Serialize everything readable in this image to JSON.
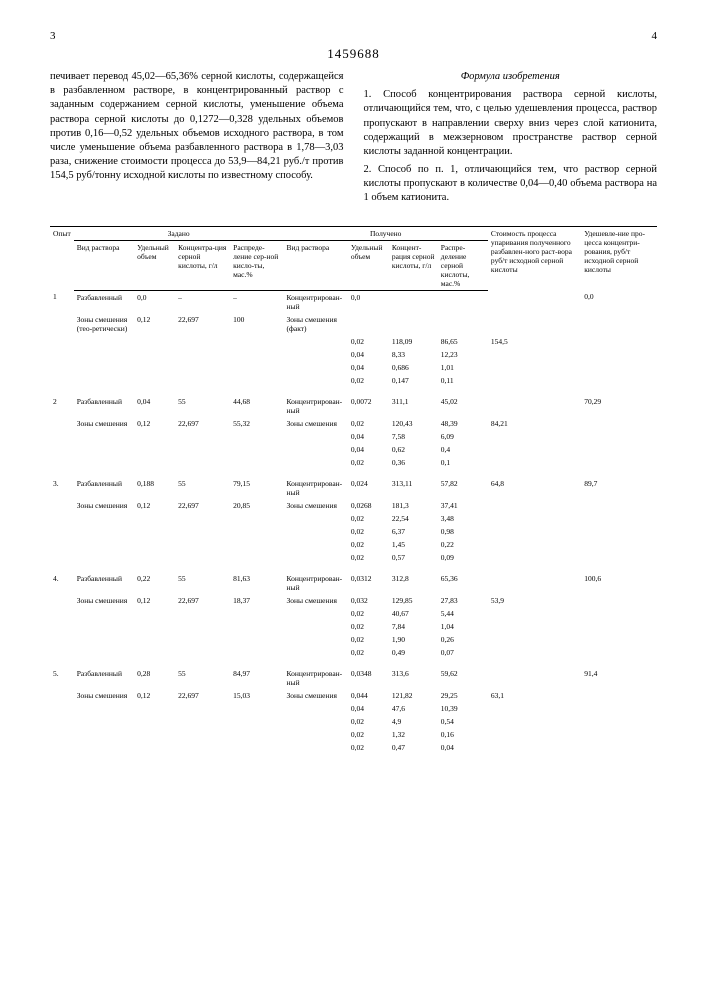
{
  "doc_number": "1459688",
  "page_left": "3",
  "page_right": "4",
  "left_text": "печивает перевод 45,02—65,36% серной кислоты, содержащейся в разбавленном растворе, в концентрированный раствор с заданным содержанием серной кислоты, уменьшение объема раствора серной кислоты до 0,1272—0,328 удельных объемов против 0,16—0,52 удельных объемов исходного раствора, в том числе уменьшение объема разбавленного раствора в 1,78—3,03 раза, снижение стоимости процесса до 53,9—84,21 руб./т против 154,5 руб/тонну исходной кислоты по известному способу.",
  "right_title": "Формула изобретения",
  "right_p1": "1. Способ концентрирования раствора серной кислоты, отличающийся тем, что, с целью удешевления процесса, раствор пропускают в направлении сверху вниз через слой катионита, содержащий в межзерновом пространстве раствор серной кислоты заданной концентрации.",
  "right_p2": "2. Способ по п. 1, отличающийся тем, что раствор серной кислоты пропускают в количестве 0,04—0,40 объема раствора на 1 объем катионита.",
  "headers": {
    "opyt": "Опыт",
    "zadano": "Задано",
    "polucheno": "Получено",
    "vid": "Вид раствора",
    "ud_obj": "Удельный объем",
    "konc": "Концентра-ция серной кислоты, г/л",
    "raspr": "Распреде-ление сер-ной кисло-ты, мас.%",
    "konc2": "Концент-рация серной кислоты, г/л",
    "raspr2": "Распре-деление серной кислоты, мас.%",
    "stoim": "Стоимость процесса упаривания полученного разбавлен-ного раст-вора руб/т исходной серной кислоты",
    "udesh": "Удешевле-ние про-цесса концентри-рования, руб/т исходной серной кислоты"
  },
  "rows": [
    {
      "opyt": "1",
      "z_vid": "Разбавленный",
      "z_ud": "0,0",
      "z_k": "–",
      "z_r": "–",
      "p_vid": "Концентрирован-ный",
      "p_ud": "0,0",
      "p_k": "",
      "p_r": "",
      "st": "",
      "ud": "0,0"
    },
    {
      "opyt": "",
      "z_vid": "Зоны смешения (тео-ретически)",
      "z_ud": "0,12",
      "z_k": "22,697",
      "z_r": "100",
      "p_vid": "Зоны смешения (факт)",
      "p_ud": "",
      "p_k": "",
      "p_r": "",
      "st": "",
      "ud": ""
    },
    {
      "opyt": "",
      "z_vid": "",
      "z_ud": "",
      "z_k": "",
      "z_r": "",
      "p_vid": "",
      "p_ud": "0,02",
      "p_k": "118,09",
      "p_r": "86,65",
      "st": "154,5",
      "ud": ""
    },
    {
      "opyt": "",
      "z_vid": "",
      "z_ud": "",
      "z_k": "",
      "z_r": "",
      "p_vid": "",
      "p_ud": "0,04",
      "p_k": "8,33",
      "p_r": "12,23",
      "st": "",
      "ud": ""
    },
    {
      "opyt": "",
      "z_vid": "",
      "z_ud": "",
      "z_k": "",
      "z_r": "",
      "p_vid": "",
      "p_ud": "0,04",
      "p_k": "0,686",
      "p_r": "1,01",
      "st": "",
      "ud": ""
    },
    {
      "opyt": "",
      "z_vid": "",
      "z_ud": "",
      "z_k": "",
      "z_r": "",
      "p_vid": "",
      "p_ud": "0,02",
      "p_k": "0,147",
      "p_r": "0,11",
      "st": "",
      "ud": ""
    },
    {
      "opyt": "2",
      "z_vid": "Разбавленный",
      "z_ud": "0,04",
      "z_k": "55",
      "z_r": "44,68",
      "p_vid": "Концентрирован-ный",
      "p_ud": "0,0072",
      "p_k": "311,1",
      "p_r": "45,02",
      "st": "",
      "ud": "70,29"
    },
    {
      "opyt": "",
      "z_vid": "Зоны смешения",
      "z_ud": "0,12",
      "z_k": "22,697",
      "z_r": "55,32",
      "p_vid": "Зоны смешения",
      "p_ud": "0,02",
      "p_k": "120,43",
      "p_r": "48,39",
      "st": "84,21",
      "ud": ""
    },
    {
      "opyt": "",
      "z_vid": "",
      "z_ud": "",
      "z_k": "",
      "z_r": "",
      "p_vid": "",
      "p_ud": "0,04",
      "p_k": "7,58",
      "p_r": "6,09",
      "st": "",
      "ud": ""
    },
    {
      "opyt": "",
      "z_vid": "",
      "z_ud": "",
      "z_k": "",
      "z_r": "",
      "p_vid": "",
      "p_ud": "0,04",
      "p_k": "0,62",
      "p_r": "0,4",
      "st": "",
      "ud": ""
    },
    {
      "opyt": "",
      "z_vid": "",
      "z_ud": "",
      "z_k": "",
      "z_r": "",
      "p_vid": "",
      "p_ud": "0,02",
      "p_k": "0,36",
      "p_r": "0,1",
      "st": "",
      "ud": ""
    },
    {
      "opyt": "3.",
      "z_vid": "Разбавленный",
      "z_ud": "0,188",
      "z_k": "55",
      "z_r": "79,15",
      "p_vid": "Концентрирован-ный",
      "p_ud": "0,024",
      "p_k": "313,11",
      "p_r": "57,82",
      "st": "64,8",
      "ud": "89,7"
    },
    {
      "opyt": "",
      "z_vid": "Зоны смешения",
      "z_ud": "0,12",
      "z_k": "22,697",
      "z_r": "20,85",
      "p_vid": "Зоны смешения",
      "p_ud": "0,0268",
      "p_k": "181,3",
      "p_r": "37,41",
      "st": "",
      "ud": ""
    },
    {
      "opyt": "",
      "z_vid": "",
      "z_ud": "",
      "z_k": "",
      "z_r": "",
      "p_vid": "",
      "p_ud": "0,02",
      "p_k": "22,54",
      "p_r": "3,48",
      "st": "",
      "ud": ""
    },
    {
      "opyt": "",
      "z_vid": "",
      "z_ud": "",
      "z_k": "",
      "z_r": "",
      "p_vid": "",
      "p_ud": "0,02",
      "p_k": "6,37",
      "p_r": "0,98",
      "st": "",
      "ud": ""
    },
    {
      "opyt": "",
      "z_vid": "",
      "z_ud": "",
      "z_k": "",
      "z_r": "",
      "p_vid": "",
      "p_ud": "0,02",
      "p_k": "1,45",
      "p_r": "0,22",
      "st": "",
      "ud": ""
    },
    {
      "opyt": "",
      "z_vid": "",
      "z_ud": "",
      "z_k": "",
      "z_r": "",
      "p_vid": "",
      "p_ud": "0,02",
      "p_k": "0,57",
      "p_r": "0,09",
      "st": "",
      "ud": ""
    },
    {
      "opyt": "4.",
      "z_vid": "Разбавленный",
      "z_ud": "0,22",
      "z_k": "55",
      "z_r": "81,63",
      "p_vid": "Концентрирован-ный",
      "p_ud": "0,0312",
      "p_k": "312,8",
      "p_r": "65,36",
      "st": "",
      "ud": "100,6"
    },
    {
      "opyt": "",
      "z_vid": "Зоны смешения",
      "z_ud": "0,12",
      "z_k": "22,697",
      "z_r": "18,37",
      "p_vid": "Зоны смешения",
      "p_ud": "0,032",
      "p_k": "129,85",
      "p_r": "27,83",
      "st": "53,9",
      "ud": ""
    },
    {
      "opyt": "",
      "z_vid": "",
      "z_ud": "",
      "z_k": "",
      "z_r": "",
      "p_vid": "",
      "p_ud": "0,02",
      "p_k": "40,67",
      "p_r": "5,44",
      "st": "",
      "ud": ""
    },
    {
      "opyt": "",
      "z_vid": "",
      "z_ud": "",
      "z_k": "",
      "z_r": "",
      "p_vid": "",
      "p_ud": "0,02",
      "p_k": "7,84",
      "p_r": "1,04",
      "st": "",
      "ud": ""
    },
    {
      "opyt": "",
      "z_vid": "",
      "z_ud": "",
      "z_k": "",
      "z_r": "",
      "p_vid": "",
      "p_ud": "0,02",
      "p_k": "1,90",
      "p_r": "0,26",
      "st": "",
      "ud": ""
    },
    {
      "opyt": "",
      "z_vid": "",
      "z_ud": "",
      "z_k": "",
      "z_r": "",
      "p_vid": "",
      "p_ud": "0,02",
      "p_k": "0,49",
      "p_r": "0,07",
      "st": "",
      "ud": ""
    },
    {
      "opyt": "5.",
      "z_vid": "Разбавленный",
      "z_ud": "0,28",
      "z_k": "55",
      "z_r": "84,97",
      "p_vid": "Концентрирован-ный",
      "p_ud": "0,0348",
      "p_k": "313,6",
      "p_r": "59,62",
      "st": "",
      "ud": "91,4"
    },
    {
      "opyt": "",
      "z_vid": "Зоны смешения",
      "z_ud": "0,12",
      "z_k": "22,697",
      "z_r": "15,03",
      "p_vid": "Зоны смешения",
      "p_ud": "0,044",
      "p_k": "121,82",
      "p_r": "29,25",
      "st": "63,1",
      "ud": ""
    },
    {
      "opyt": "",
      "z_vid": "",
      "z_ud": "",
      "z_k": "",
      "z_r": "",
      "p_vid": "",
      "p_ud": "0,04",
      "p_k": "47,6",
      "p_r": "10,39",
      "st": "",
      "ud": ""
    },
    {
      "opyt": "",
      "z_vid": "",
      "z_ud": "",
      "z_k": "",
      "z_r": "",
      "p_vid": "",
      "p_ud": "0,02",
      "p_k": "4,9",
      "p_r": "0,54",
      "st": "",
      "ud": ""
    },
    {
      "opyt": "",
      "z_vid": "",
      "z_ud": "",
      "z_k": "",
      "z_r": "",
      "p_vid": "",
      "p_ud": "0,02",
      "p_k": "1,32",
      "p_r": "0,16",
      "st": "",
      "ud": ""
    },
    {
      "opyt": "",
      "z_vid": "",
      "z_ud": "",
      "z_k": "",
      "z_r": "",
      "p_vid": "",
      "p_ud": "0,02",
      "p_k": "0,47",
      "p_r": "0,04",
      "st": "",
      "ud": ""
    }
  ]
}
